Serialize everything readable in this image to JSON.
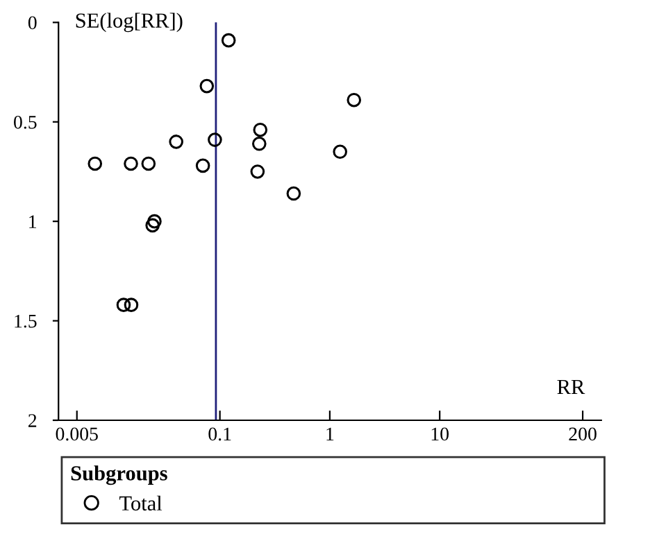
{
  "chart_data": {
    "type": "scatter",
    "ylabel": "SE(log[RR])",
    "xlabel": "RR",
    "legend_title": "Subgroups",
    "log": "x",
    "xlim": [
      0.0034,
      295
    ],
    "xticks": [
      0.005,
      0.1,
      1,
      10,
      200
    ],
    "ylim": [
      2,
      0
    ],
    "yticks": [
      0,
      0.5,
      1,
      1.5,
      2
    ],
    "marker": "circle",
    "grid": false,
    "legend": "bottom",
    "ref_lines": [
      {
        "axis": "x",
        "value": 0.092,
        "color": "#1f1f7a",
        "line_style": "solid"
      }
    ],
    "series": [
      {
        "name": "Total",
        "color": "#000000",
        "x": [
          0.12,
          0.076,
          1.66,
          0.233,
          0.228,
          0.09,
          0.04,
          1.24,
          0.0073,
          0.0155,
          0.0224,
          0.07,
          0.22,
          0.469,
          0.0254,
          0.0244,
          0.0133,
          0.0156
        ],
        "values": [
          0.09,
          0.32,
          0.39,
          0.54,
          0.61,
          0.59,
          0.6,
          0.65,
          0.71,
          0.71,
          0.71,
          0.72,
          0.75,
          0.86,
          1.0,
          1.02,
          1.42,
          1.42
        ]
      }
    ]
  }
}
